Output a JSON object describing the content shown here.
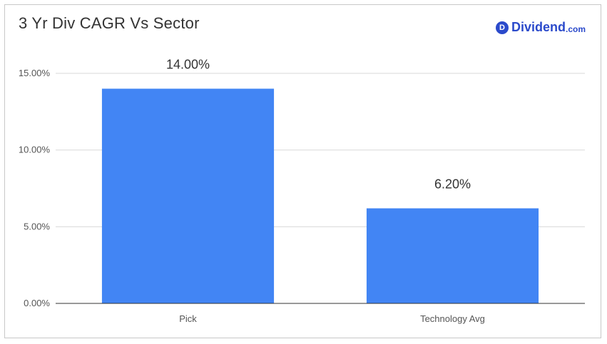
{
  "logo": {
    "badge": "D",
    "name": "Dividend",
    "suffix": ".com"
  },
  "colors": {
    "bar": "#4285f4",
    "grid": "#d9d9d9",
    "axis": "#333333",
    "brand": "#2b4acb"
  },
  "chart_data": {
    "type": "bar",
    "title": "3 Yr Div CAGR Vs Sector",
    "xlabel": "",
    "ylabel": "",
    "categories": [
      "Pick",
      "Technology Avg"
    ],
    "values": [
      14.0,
      6.2
    ],
    "data_labels": [
      "14.00%",
      "6.20%"
    ],
    "ylim": [
      0,
      15
    ],
    "yticks": [
      0,
      5,
      10,
      15
    ],
    "ytick_labels": [
      "0.00%",
      "5.00%",
      "10.00%",
      "15.00%"
    ],
    "grid": true,
    "legend": "none"
  }
}
